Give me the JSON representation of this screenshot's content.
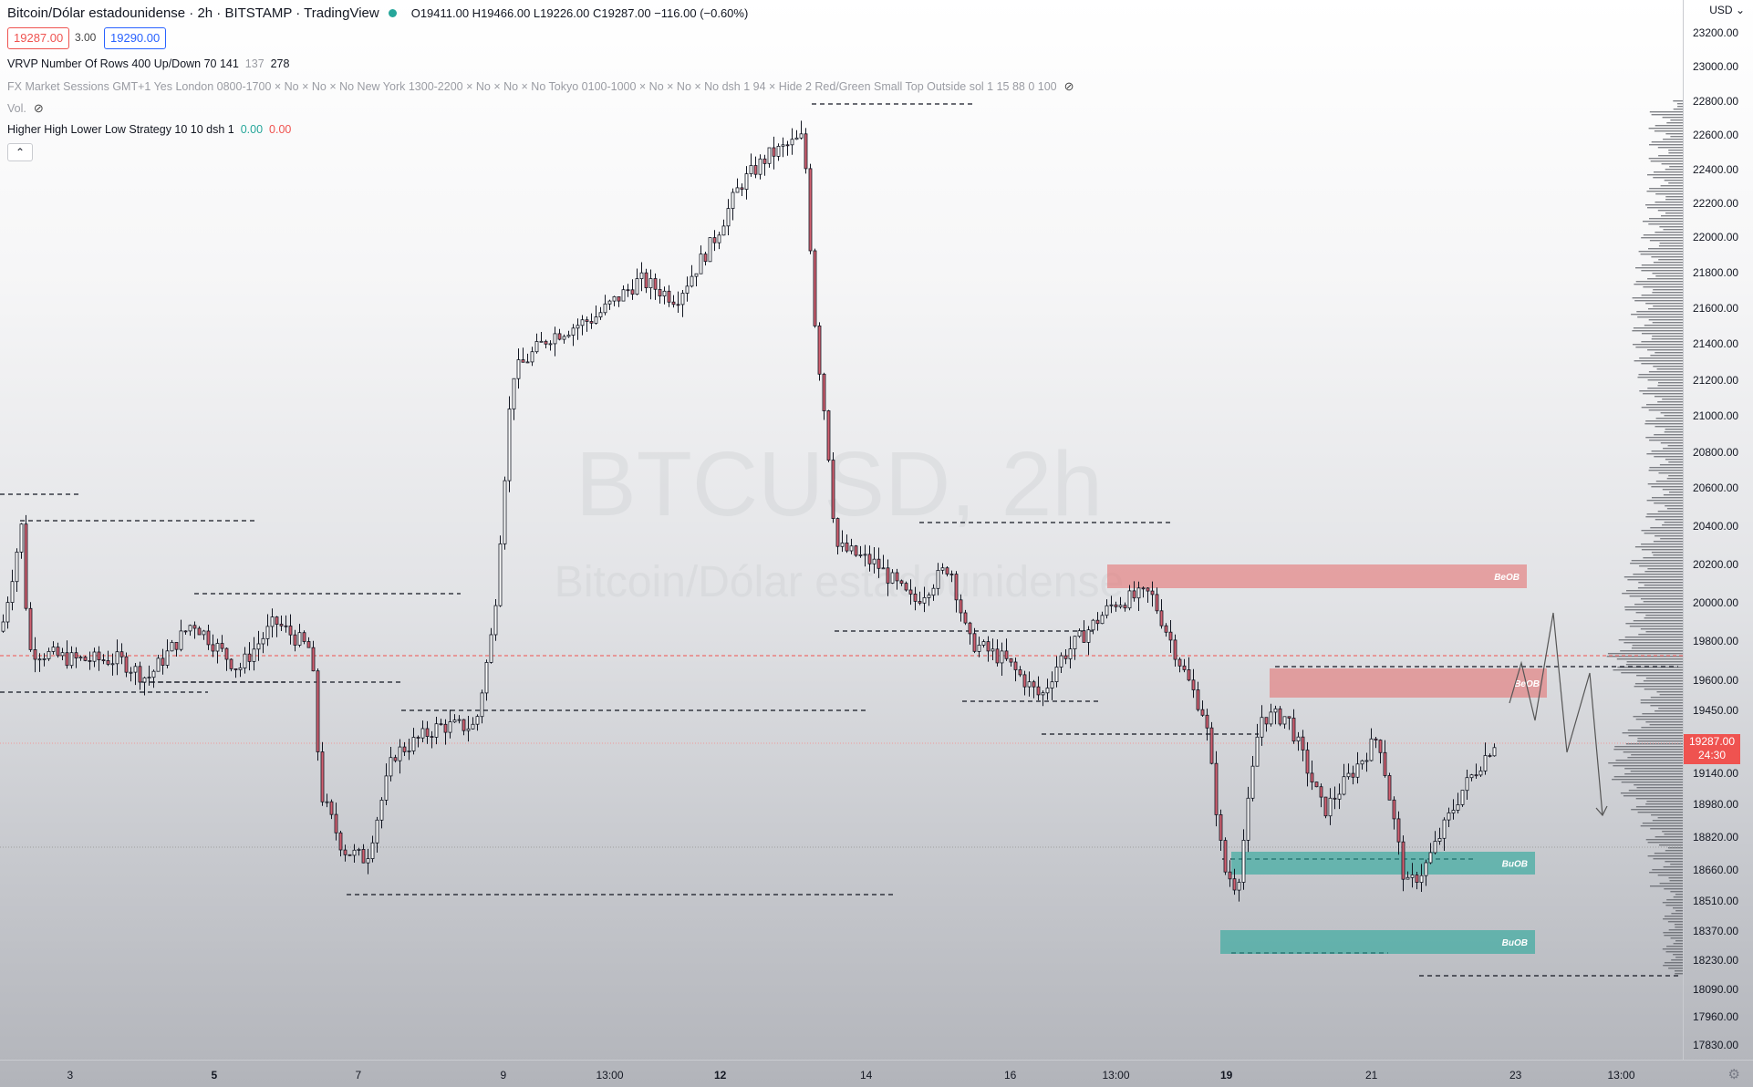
{
  "header": {
    "symbol": "Bitcoin/Dólar estadounidense · 2h · BITSTAMP · TradingView",
    "ohlc": "O19411.00 H19466.00 L19226.00 C19287.00 −116.00 (−0.60%)",
    "sell_price": "19287.00",
    "spread": "3.00",
    "buy_price": "19290.00"
  },
  "indicators": [
    {
      "text": "VRVP Number Of Rows 400 Up/Down 70  141",
      "extra": "137",
      "extra2": "278"
    },
    {
      "text": "FX Market Sessions GMT+1 Yes London 0800-1700 × No × No × No New York 1300-2200 × No × No × No Tokyo 0100-1000 × No × No × No dsh 1 94 × Hide 2 Red/Green Small Top Outside sol 1 15 88 0 100"
    },
    {
      "text": "Vol."
    },
    {
      "text": "Higher High Lower Low Strategy 10 10 dsh 1",
      "val_up": "0.00",
      "val_down": "0.00"
    }
  ],
  "watermark": {
    "line1": "BTCUSD, 2h",
    "line2": "Bitcoin/Dólar estadounidense"
  },
  "price_axis": {
    "currency": "USD",
    "labels": [
      "23200.00",
      "23000.00",
      "22800.00",
      "22600.00",
      "22400.00",
      "22200.00",
      "22000.00",
      "21800.00",
      "21600.00",
      "21400.00",
      "21200.00",
      "21000.00",
      "20800.00",
      "20600.00",
      "20400.00",
      "20200.00",
      "20000.00",
      "19800.00",
      "19600.00",
      "19450.00",
      "19287.00",
      "19140.00",
      "18980.00",
      "18820.00",
      "18660.00",
      "18510.00",
      "18370.00",
      "18230.00",
      "18090.00",
      "17960.00",
      "17830.00"
    ],
    "last_price": "19287.00",
    "countdown": "24:30"
  },
  "time_axis": {
    "labels": [
      "3",
      "5",
      "7",
      "9",
      "13:00",
      "12",
      "14",
      "16",
      "13:00",
      "19",
      "21",
      "23",
      "13:00"
    ]
  },
  "zones": [
    {
      "label": "BeOB",
      "color": "#e57373"
    },
    {
      "label": "BeOB",
      "color": "#e57373"
    },
    {
      "label": "BuOB",
      "color": "#26a69a"
    },
    {
      "label": "BuOB",
      "color": "#26a69a"
    }
  ],
  "colors": {
    "bull": "#ffffff",
    "bear": "#d16070",
    "wick": "#131722"
  }
}
